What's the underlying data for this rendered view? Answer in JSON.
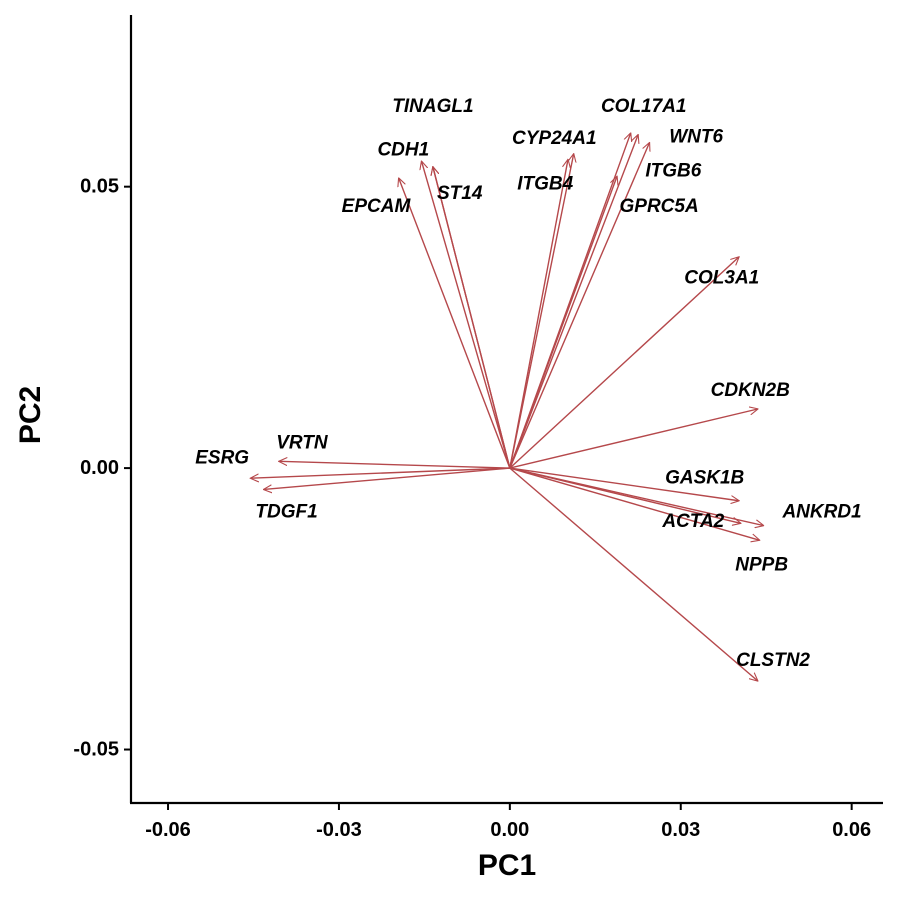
{
  "chart_data": {
    "type": "biplot",
    "xlabel": "PC1",
    "ylabel": "PC2",
    "xlim": [
      -0.0665,
      0.0655
    ],
    "ylim": [
      -0.0595,
      0.0805
    ],
    "x_ticks": [
      -0.06,
      -0.03,
      0.0,
      0.03,
      0.06
    ],
    "x_tick_labels": [
      "-0.06",
      "-0.03",
      "0.00",
      "0.03",
      "0.06"
    ],
    "y_ticks": [
      -0.05,
      0.0,
      0.05
    ],
    "y_tick_labels": [
      "-0.05",
      "0.00",
      "0.05"
    ],
    "arrow_color": "#b5484b",
    "grid": false,
    "series": [
      {
        "name": "TINAGL1",
        "x": -0.0135,
        "y": 0.0535
      },
      {
        "name": "CDH1",
        "x": -0.0155,
        "y": 0.0545
      },
      {
        "name": "ST14",
        "x": -0.0135,
        "y": 0.0535
      },
      {
        "name": "EPCAM",
        "x": -0.0195,
        "y": 0.0515
      },
      {
        "name": "CYP24A1",
        "x": 0.0112,
        "y": 0.0558
      },
      {
        "name": "ITGB4",
        "x": 0.0102,
        "y": 0.0548
      },
      {
        "name": "COL17A1",
        "x": 0.0212,
        "y": 0.0595
      },
      {
        "name": "WNT6",
        "x": 0.0245,
        "y": 0.0578
      },
      {
        "name": "ITGB6",
        "x": 0.0225,
        "y": 0.0592
      },
      {
        "name": "GPRC5A",
        "x": 0.0188,
        "y": 0.0518
      },
      {
        "name": "COL3A1",
        "x": 0.0402,
        "y": 0.0375
      },
      {
        "name": "CDKN2B",
        "x": 0.0435,
        "y": 0.0105
      },
      {
        "name": "GASK1B",
        "x": 0.0402,
        "y": -0.0058
      },
      {
        "name": "ACTA2",
        "x": 0.0405,
        "y": -0.0098
      },
      {
        "name": "ANKRD1",
        "x": 0.0445,
        "y": -0.0102
      },
      {
        "name": "NPPB",
        "x": 0.0438,
        "y": -0.0128
      },
      {
        "name": "CLSTN2",
        "x": 0.0435,
        "y": -0.0378
      },
      {
        "name": "VRTN",
        "x": -0.0405,
        "y": 0.0012
      },
      {
        "name": "ESRG",
        "x": -0.0455,
        "y": -0.0018
      },
      {
        "name": "TDGF1",
        "x": -0.0432,
        "y": -0.0038
      }
    ],
    "labels": [
      {
        "text": "TINAGL1",
        "x": -0.0135,
        "y": 0.0642
      },
      {
        "text": "COL17A1",
        "x": 0.0235,
        "y": 0.0642
      },
      {
        "text": "CDH1",
        "x": -0.0187,
        "y": 0.0565
      },
      {
        "text": "CYP24A1",
        "x": 0.0078,
        "y": 0.0586
      },
      {
        "text": "WNT6",
        "x": 0.0327,
        "y": 0.0588
      },
      {
        "text": "ITGB6",
        "x": 0.0287,
        "y": 0.0528
      },
      {
        "text": "ST14",
        "x": -0.0088,
        "y": 0.0488
      },
      {
        "text": "ITGB4",
        "x": 0.0062,
        "y": 0.0505
      },
      {
        "text": "GPRC5A",
        "x": 0.0262,
        "y": 0.0465
      },
      {
        "text": "EPCAM",
        "x": -0.0235,
        "y": 0.0465
      },
      {
        "text": "COL3A1",
        "x": 0.0372,
        "y": 0.0338
      },
      {
        "text": "CDKN2B",
        "x": 0.0422,
        "y": 0.0138
      },
      {
        "text": "VRTN",
        "x": -0.0365,
        "y": 0.0045
      },
      {
        "text": "ESRG",
        "x": -0.0505,
        "y": 0.0018
      },
      {
        "text": "GASK1B",
        "x": 0.0342,
        "y": -0.0018
      },
      {
        "text": "TDGF1",
        "x": -0.0392,
        "y": -0.0078
      },
      {
        "text": "ANKRD1",
        "x": 0.0548,
        "y": -0.0078
      },
      {
        "text": "ACTA2",
        "x": 0.0322,
        "y": -0.0095
      },
      {
        "text": "NPPB",
        "x": 0.0442,
        "y": -0.0172
      },
      {
        "text": "CLSTN2",
        "x": 0.0462,
        "y": -0.0342
      }
    ]
  }
}
